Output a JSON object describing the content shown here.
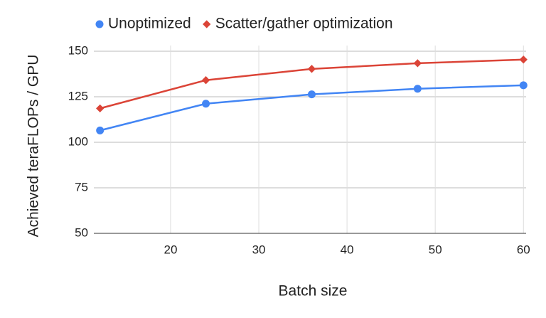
{
  "chart_data": {
    "type": "line",
    "x_label": "Batch size",
    "y_label": "Achieved teraFLOPs / GPU",
    "x": [
      12,
      24,
      36,
      48,
      60
    ],
    "series": [
      {
        "name": "Unoptimized",
        "color": "#4285f4",
        "marker": "circle",
        "values": [
          106.5,
          121.2,
          126.3,
          129.4,
          131.3
        ]
      },
      {
        "name": "Scatter/gather optimization",
        "color": "#db4437",
        "marker": "diamond",
        "values": [
          118.6,
          134.1,
          140.3,
          143.4,
          145.4
        ]
      }
    ],
    "xlim": [
      11.3,
      60.3
    ],
    "xticks": [
      20,
      30,
      40,
      50,
      60
    ],
    "ylim": [
      50,
      150
    ],
    "yticks": [
      50,
      75,
      100,
      125,
      150
    ],
    "grid": true,
    "legend": "top"
  }
}
